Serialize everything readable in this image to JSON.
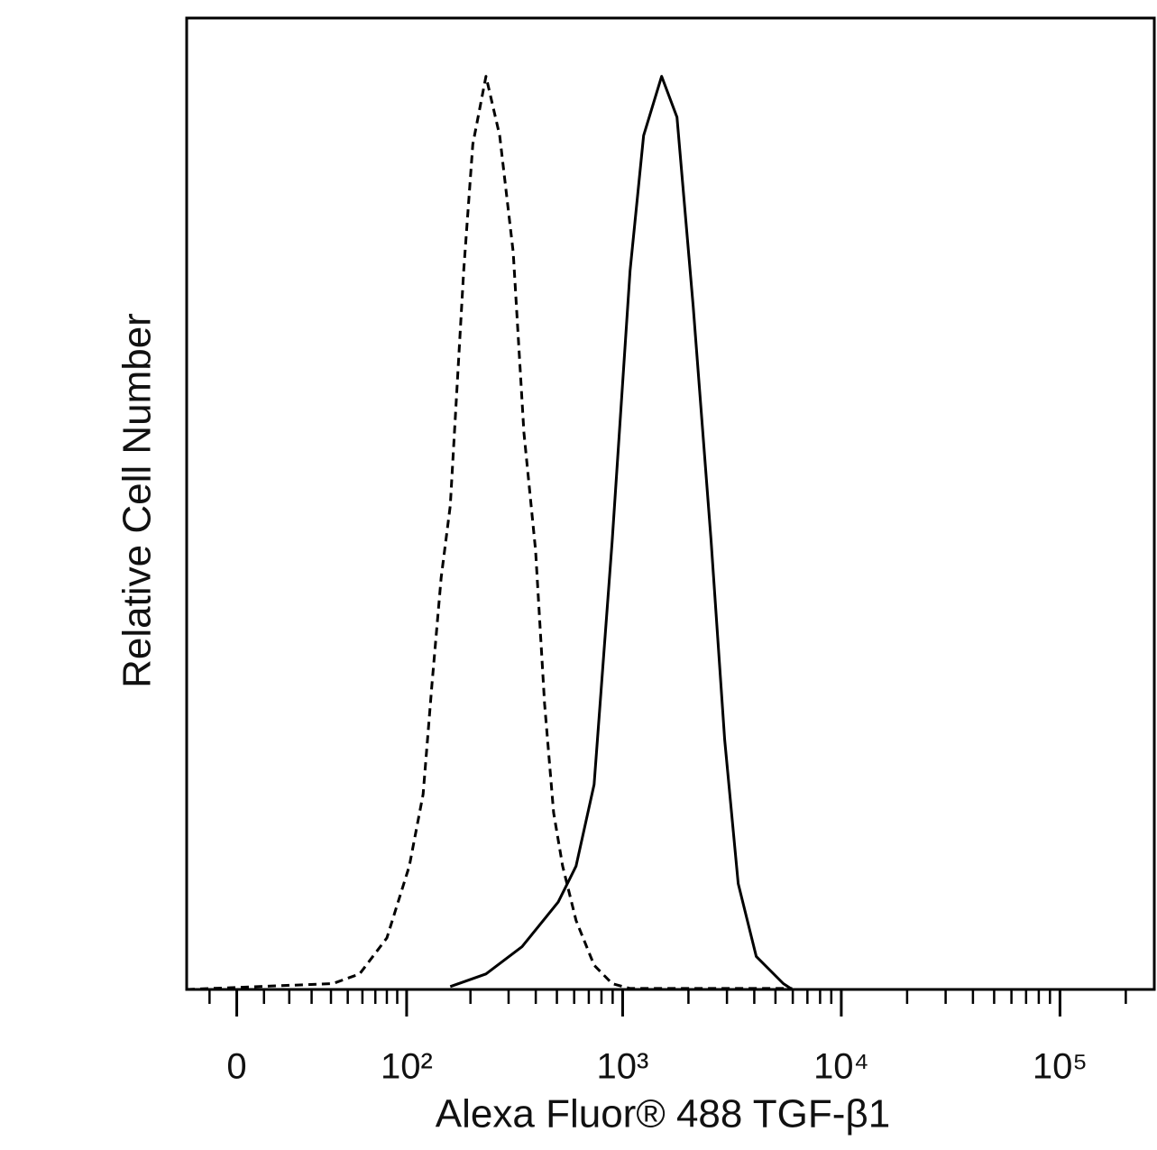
{
  "chart_data": {
    "type": "line",
    "x_label": "Alexa Fluor® 488 TGF-β1",
    "y_label": "Relative Cell Number",
    "xscale": "arcsinh",
    "xlim": [
      -19,
      270000
    ],
    "ylim": [
      0,
      100
    ],
    "xticks": [
      {
        "value": 0,
        "label": "0"
      },
      {
        "value": 100,
        "label": "10²"
      },
      {
        "value": 1000,
        "label": "10³"
      },
      {
        "value": 10000,
        "label": "10⁴"
      },
      {
        "value": 100000,
        "label": "10⁵"
      }
    ],
    "xminor_ticks": [
      -10,
      10,
      20,
      30,
      40,
      50,
      60,
      70,
      80,
      90,
      200,
      300,
      400,
      500,
      600,
      700,
      800,
      900,
      2000,
      3000,
      4000,
      5000,
      6000,
      7000,
      8000,
      9000,
      20000,
      30000,
      40000,
      50000,
      60000,
      70000,
      80000,
      90000,
      200000
    ],
    "series": [
      {
        "color": "#000000",
        "line_style": "dashed",
        "x": [
          -19,
          41,
          58,
          80,
          103,
          120,
          132,
          146,
          161,
          186,
          205,
          236,
          273,
          315,
          353,
          399,
          439,
          483,
          531,
          612,
          740,
          895,
          1082,
          5965
        ],
        "values": [
          0,
          0.6,
          1.6,
          5.3,
          12.7,
          20.1,
          31.3,
          42.4,
          49.8,
          74.0,
          87.0,
          94.0,
          87.9,
          75.9,
          57.3,
          45.2,
          29.4,
          18.2,
          12.7,
          7.1,
          2.5,
          0.6,
          0.1,
          0.1
        ]
      },
      {
        "color": "#000000",
        "line_style": "solid",
        "x": [
          161,
          236,
          346,
          507,
          612,
          740,
          895,
          1082,
          1247,
          1508,
          1772,
          2102,
          2540,
          2928,
          3378,
          4082,
          5428,
          5965
        ],
        "values": [
          0.3,
          1.6,
          4.4,
          9.0,
          12.7,
          21.1,
          46.1,
          74.0,
          87.9,
          94.0,
          89.8,
          70.3,
          46.1,
          25.7,
          10.9,
          3.4,
          0.6,
          0
        ]
      }
    ]
  }
}
